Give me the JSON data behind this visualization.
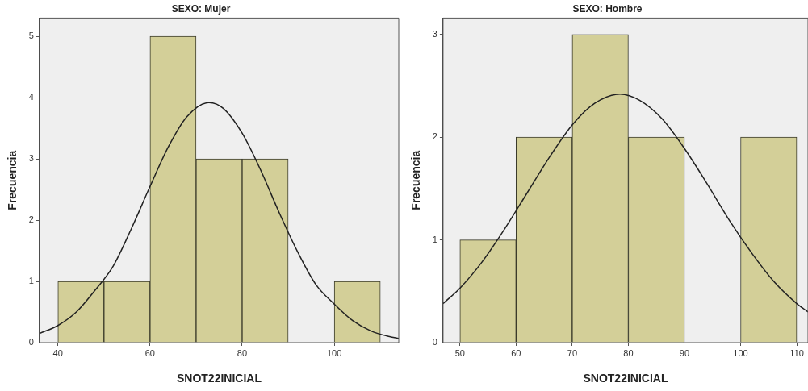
{
  "chart_data": [
    {
      "type": "histogram",
      "title": "SEXO: Mujer",
      "xlabel": "SNOT22INICIAL",
      "ylabel": "Frecuencia",
      "bins": [
        40,
        50,
        60,
        70,
        80,
        90,
        100,
        110
      ],
      "values": [
        1,
        1,
        5,
        3,
        3,
        0,
        1
      ],
      "color": "#d3cf98",
      "xlim": [
        36,
        114
      ],
      "ylim": [
        0,
        5.3
      ],
      "xticks": [
        40,
        60,
        80,
        100
      ],
      "yticks": [
        0,
        1,
        2,
        3,
        4,
        5
      ],
      "grid": false,
      "legend": false,
      "series": [
        {
          "type": "line",
          "color": "#222222",
          "x": [
            36,
            40,
            44,
            48,
            52,
            56,
            60,
            64,
            68,
            72.8,
            76,
            80,
            84,
            88,
            92,
            96,
            100,
            104,
            108,
            112,
            114
          ],
          "values": [
            0.15,
            0.28,
            0.5,
            0.85,
            1.25,
            1.87,
            2.55,
            3.2,
            3.69,
            3.92,
            3.82,
            3.42,
            2.82,
            2.13,
            1.49,
            0.95,
            0.63,
            0.36,
            0.19,
            0.1,
            0.07
          ]
        }
      ],
      "marker": "none",
      "line_style": "solid"
    },
    {
      "type": "histogram",
      "title": "SEXO: Hombre",
      "xlabel": "SNOT22INICIAL",
      "ylabel": "Frecuencia",
      "bins": [
        50,
        60,
        70,
        80,
        90,
        100,
        110
      ],
      "values": [
        1,
        2,
        3,
        2,
        0,
        2
      ],
      "color": "#d3cf98",
      "xlim": [
        47,
        112
      ],
      "ylim": [
        0,
        3.16
      ],
      "xticks": [
        50,
        60,
        70,
        80,
        90,
        100,
        110
      ],
      "yticks": [
        0,
        1,
        2,
        3
      ],
      "grid": false,
      "legend": false,
      "series": [
        {
          "type": "line",
          "color": "#222222",
          "x": [
            47,
            50,
            54,
            58,
            62,
            66,
            70,
            74,
            78.5,
            82,
            86,
            90,
            94,
            98,
            102,
            106,
            110,
            112
          ],
          "values": [
            0.38,
            0.53,
            0.79,
            1.11,
            1.46,
            1.81,
            2.12,
            2.33,
            2.42,
            2.36,
            2.18,
            1.89,
            1.55,
            1.19,
            0.87,
            0.59,
            0.38,
            0.3
          ]
        }
      ],
      "marker": "none",
      "line_style": "solid"
    }
  ]
}
